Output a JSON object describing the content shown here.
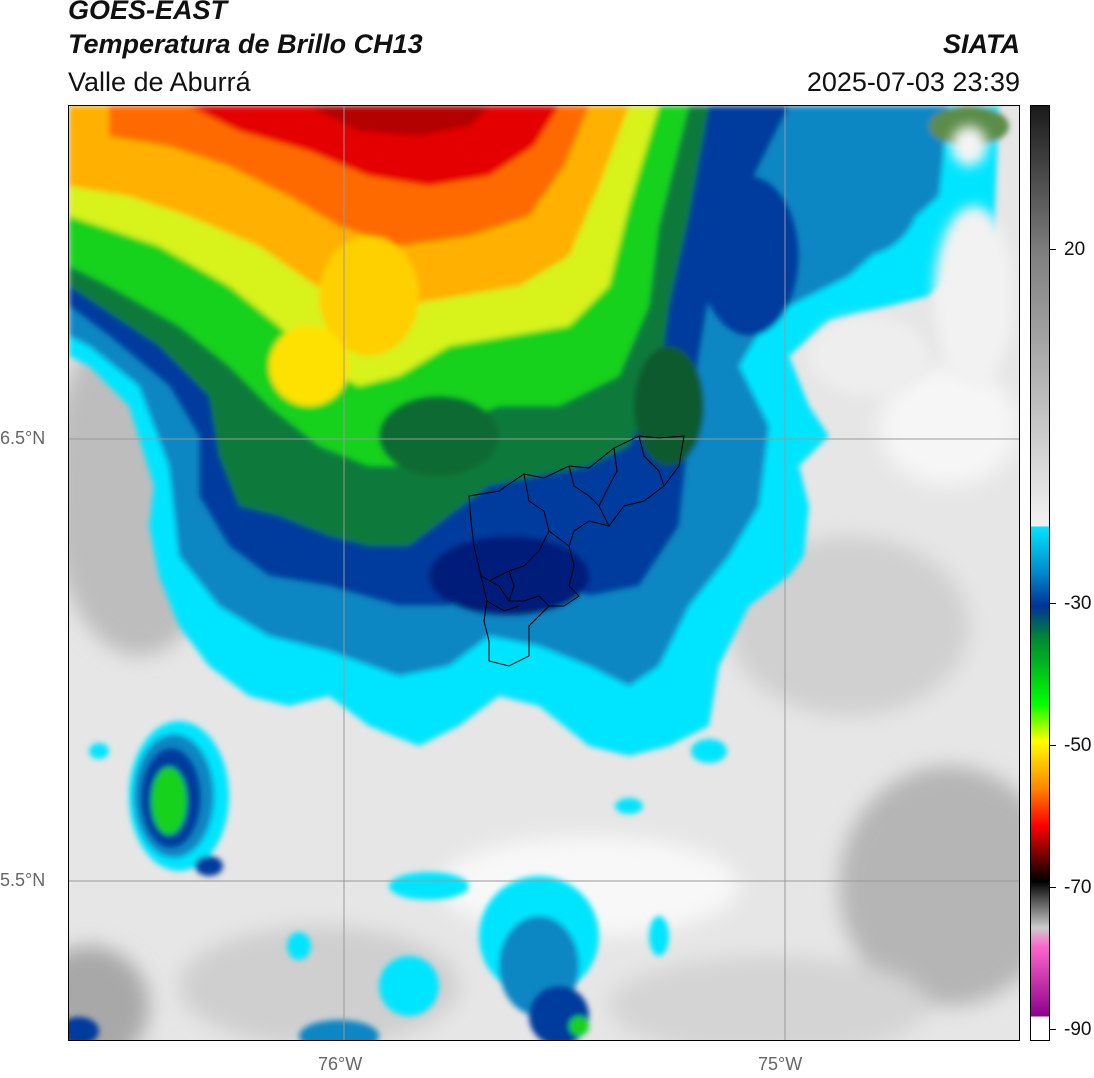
{
  "header": {
    "satellite": "GOES-EAST",
    "product": "Temperatura de Brillo CH13",
    "region": "Valle de Aburrá",
    "organization": "SIATA",
    "datetime": "2025-07-03 23:39"
  },
  "map": {
    "latitude_labels": [
      "6.5°N",
      "5.5°N"
    ],
    "longitude_labels": [
      "76°W",
      "75°W"
    ]
  },
  "colorbar": {
    "tick_labels": [
      "20",
      "-30",
      "-50",
      "-70",
      "-90"
    ],
    "scale": [
      "#1a1a1a",
      "#808080",
      "#f2f2f2",
      "#00e5ff",
      "#0088cc",
      "#003399",
      "#008833",
      "#00ff00",
      "#ffff00",
      "#ff8800",
      "#ff0000",
      "#000000",
      "#cccccc",
      "#ff66cc",
      "#8b008b",
      "#ffffff"
    ]
  }
}
